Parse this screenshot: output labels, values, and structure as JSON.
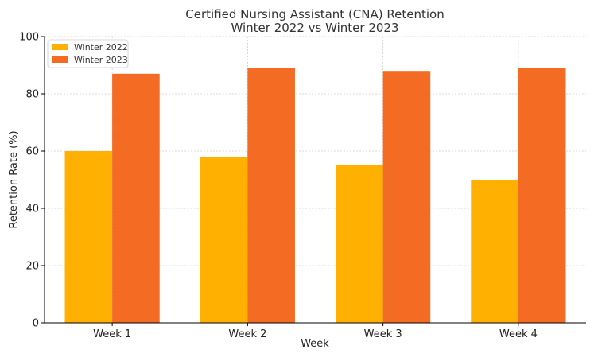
{
  "chart_data": {
    "type": "bar",
    "title_line1": "Certified Nursing Assistant (CNA) Retention",
    "title_line2": "Winter 2022 vs Winter 2023",
    "xlabel": "Week",
    "ylabel": "Retention Rate (%)",
    "categories": [
      "Week 1",
      "Week 2",
      "Week 3",
      "Week 4"
    ],
    "series": [
      {
        "name": "Winter 2022",
        "values": [
          60,
          58,
          55,
          50
        ],
        "color": "#FFB000"
      },
      {
        "name": "Winter 2023",
        "values": [
          87,
          89,
          88,
          89
        ],
        "color": "#F46B23"
      }
    ],
    "ylim": [
      0,
      100
    ],
    "yticks": [
      0,
      20,
      40,
      60,
      80,
      100
    ],
    "grid": true,
    "legend": "top-left"
  }
}
